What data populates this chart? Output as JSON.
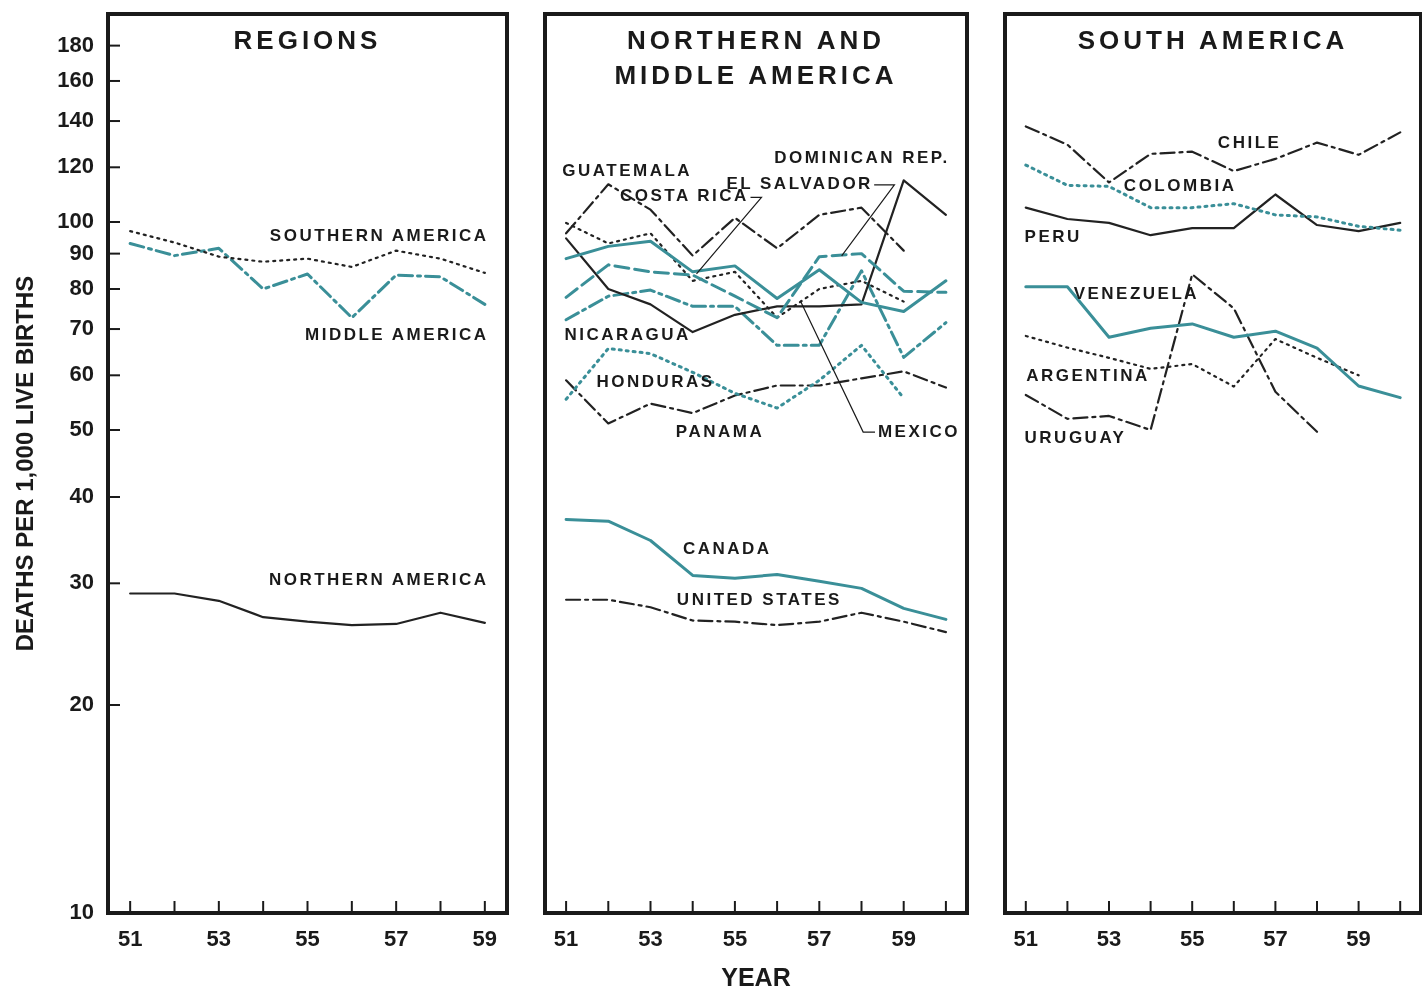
{
  "chart_data": [
    {
      "type": "line",
      "title": "REGIONS",
      "ylabel": "DEATHS PER 1,000 LIVE BIRTHS",
      "x": [
        51,
        52,
        53,
        54,
        55,
        56,
        57,
        58,
        59
      ],
      "xlim": [
        50.5,
        59.5
      ],
      "xticks": [
        51,
        {
          "value": 52,
          "label": null
        },
        53,
        {
          "value": 54,
          "label": null
        },
        55,
        {
          "value": 56,
          "label": null
        },
        57,
        {
          "value": 58,
          "label": null
        },
        59
      ],
      "ylim": [
        10,
        200
      ],
      "yticks": [
        10,
        20,
        30,
        40,
        50,
        60,
        70,
        80,
        90,
        100,
        120,
        140,
        160,
        180
      ],
      "log": true,
      "series": [
        {
          "name": "SOUTHERN AMERICA",
          "color": "#222222",
          "line_style": "dotted",
          "values": [
            97,
            93.4,
            89.1,
            87.6,
            88.5,
            86.1,
            90.9,
            88.5,
            84.4
          ]
        },
        {
          "name": "MIDDLE AMERICA",
          "color": "#3a8f98",
          "line_style": "dashdot",
          "values": [
            93.1,
            89.4,
            91.6,
            80.0,
            84.1,
            72.7,
            83.8,
            83.3,
            76.0
          ]
        },
        {
          "name": "NORTHERN AMERICA",
          "color": "#222222",
          "line_style": "solid",
          "values": [
            29,
            29,
            28.3,
            26.8,
            26.4,
            26.1,
            26.2,
            27.2,
            26.3
          ]
        }
      ]
    },
    {
      "type": "line",
      "title": "NORTHERN AND MIDDLE AMERICA",
      "xlabel": "YEAR",
      "x": [
        51,
        52,
        53,
        54,
        55,
        56,
        57,
        58,
        59,
        60
      ],
      "xlim": [
        50.5,
        60.5
      ],
      "xticks": [
        51,
        {
          "value": 52,
          "label": null
        },
        53,
        {
          "value": 54,
          "label": null
        },
        55,
        {
          "value": 56,
          "label": null
        },
        57,
        {
          "value": 58,
          "label": null
        },
        59,
        {
          "value": 60,
          "label": null
        }
      ],
      "ylim": [
        10,
        200
      ],
      "yticks": [
        10,
        20,
        30,
        40,
        50,
        60,
        70,
        80,
        90,
        100,
        120,
        140,
        160,
        180
      ],
      "log": true,
      "tick_labels": "x",
      "series": [
        {
          "name": "GUATEMALA",
          "color": "#222222",
          "line_style": "dashdot",
          "values": [
            96.3,
            113.4,
            104.2,
            89.4,
            101.4,
            91.6,
            102.4,
            104.9,
            90.9,
            null
          ]
        },
        {
          "name": "COSTA RICA",
          "color": "#3a8f98",
          "line_style": "solid",
          "values": [
            88.5,
            92.2,
            93.8,
            84.7,
            86.4,
            77.5,
            85.3,
            76.5,
            74.2,
            82.2
          ]
        },
        {
          "name": "EL SALVADOR",
          "color": "#3a8f98",
          "line_style": "dashed",
          "values": [
            77.8,
            86.7,
            84.7,
            83.8,
            78.1,
            72.7,
            89.1,
            90.0,
            79.4,
            79.1
          ]
        },
        {
          "name": "DOMINICAN REP.",
          "color": "#222222",
          "line_style": "solid",
          "values": [
            94.7,
            80.0,
            76.0,
            69.3,
            73.4,
            75.5,
            75.5,
            76.0,
            114.9,
            102.4
          ]
        },
        {
          "name": "NICARAGUA",
          "color": "#3a8f98",
          "line_style": "dashdot",
          "values": [
            72.2,
            78.1,
            79.7,
            75.5,
            75.5,
            66.3,
            66.3,
            85.0,
            63.7,
            71.5
          ]
        },
        {
          "name": "HONDURAS",
          "color": "#3a8f98",
          "line_style": "dotted",
          "values": [
            55.4,
            65.6,
            64.5,
            60.6,
            56.5,
            53.8,
            59.0,
            66.3,
            55.6,
            null
          ]
        },
        {
          "name": "PANAMA",
          "color": "#222222",
          "line_style": "dashdot",
          "values": [
            59.0,
            51.1,
            54.6,
            52.9,
            56.1,
            58.0,
            58.0,
            59.4,
            60.8,
            57.6
          ]
        },
        {
          "name": "MEXICO",
          "color": "#222222",
          "line_style": "dotted",
          "values": [
            99.7,
            93.1,
            96.3,
            82.2,
            84.7,
            72.7,
            80.0,
            82.2,
            76.7,
            null
          ]
        },
        {
          "name": "CANADA",
          "color": "#3a8f98",
          "line_style": "solid",
          "values": [
            37.1,
            36.9,
            34.6,
            30.8,
            30.5,
            30.9,
            30.2,
            29.5,
            27.6,
            26.6
          ]
        },
        {
          "name": "UNITED STATES",
          "color": "#222222",
          "line_style": "dashdot",
          "values": [
            28.4,
            28.4,
            27.7,
            26.5,
            26.4,
            26.1,
            26.4,
            27.2,
            26.4,
            25.5
          ]
        }
      ]
    },
    {
      "type": "line",
      "title": "SOUTH AMERICA",
      "x": [
        51,
        52,
        53,
        54,
        55,
        56,
        57,
        58,
        59,
        60
      ],
      "xlim": [
        50.5,
        60.5
      ],
      "xticks": [
        51,
        {
          "value": 52,
          "label": null
        },
        53,
        {
          "value": 54,
          "label": null
        },
        55,
        {
          "value": 56,
          "label": null
        },
        57,
        {
          "value": 58,
          "label": null
        },
        59,
        {
          "value": 60,
          "label": null
        }
      ],
      "ylim": [
        10,
        200
      ],
      "yticks": [
        10,
        20,
        30,
        40,
        50,
        60,
        70,
        80,
        90,
        100,
        120,
        140,
        160,
        180
      ],
      "log": true,
      "tick_labels": "x",
      "series": [
        {
          "name": "CHILE",
          "color": "#222222",
          "line_style": "dashdot",
          "values": [
            137.5,
            129.4,
            114.1,
            125.5,
            126.4,
            118.5,
            123.4,
            130.3,
            125.1,
            134.8
          ]
        },
        {
          "name": "COLOMBIA",
          "color": "#3a8f98",
          "line_style": "dotted",
          "values": [
            120.9,
            113.0,
            112.6,
            104.9,
            104.9,
            106.3,
            102.4,
            101.7,
            98.6,
            97.3
          ]
        },
        {
          "name": "PERU",
          "color": "#222222",
          "line_style": "solid",
          "values": [
            104.9,
            101.0,
            99.7,
            95.7,
            98.0,
            98.0,
            109.6,
            99.0,
            97.0,
            99.7
          ]
        },
        {
          "name": "VENEZUELA",
          "color": "#3a8f98",
          "line_style": "solid",
          "values": [
            80.6,
            80.6,
            68.1,
            70.2,
            71.2,
            68.1,
            69.5,
            65.7,
            57.9,
            55.7
          ]
        },
        {
          "name": "ARGENTINA",
          "color": "#222222",
          "line_style": "dotted",
          "values": [
            68.4,
            65.8,
            63.6,
            61.3,
            62.3,
            57.8,
            67.7,
            63.6,
            60.0,
            null
          ]
        },
        {
          "name": "URUGUAY",
          "color": "#222222",
          "line_style": "dashdot",
          "values": [
            56.2,
            51.9,
            52.4,
            50.0,
            84.0,
            75.0,
            56.8,
            49.7,
            null,
            null
          ]
        }
      ]
    }
  ]
}
